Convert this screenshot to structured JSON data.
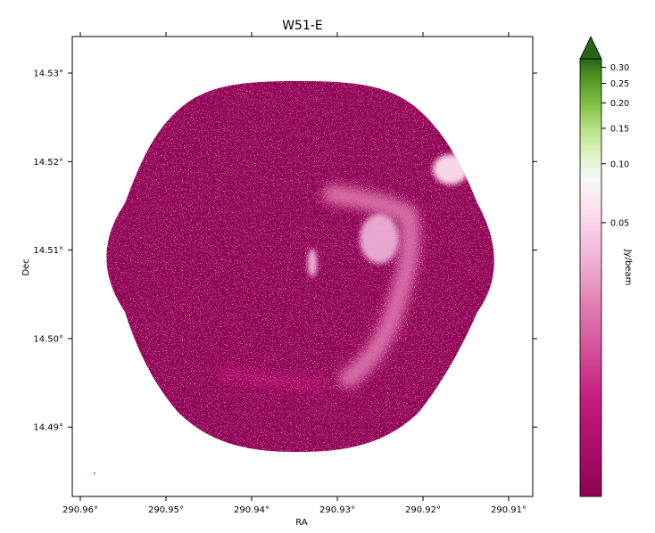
{
  "chart_data": {
    "type": "heatmap",
    "title": "W51-E",
    "xlabel": "RA",
    "ylabel": "Dec",
    "colorbar_label": "Jy/beam",
    "x_ticks": [
      "290.96°",
      "290.95°",
      "290.94°",
      "290.93°",
      "290.92°",
      "290.91°"
    ],
    "y_ticks": [
      "14.53°",
      "14.52°",
      "14.51°",
      "14.50°",
      "14.49°"
    ],
    "colorbar_ticks": [
      "0.30",
      "0.25",
      "0.20",
      "0.15",
      "0.10",
      "0.05"
    ],
    "colorbar_values": [
      0.3,
      0.25,
      0.2,
      0.15,
      0.1,
      0.05
    ],
    "colormap": "PiYG",
    "colors": {
      "background_map": "#8e0152",
      "mid_magenta": "#c51b7d",
      "pink": "#f1b6da",
      "white": "#f7f7f7",
      "light_green": "#b8e186",
      "dark_green": "#276419"
    }
  }
}
